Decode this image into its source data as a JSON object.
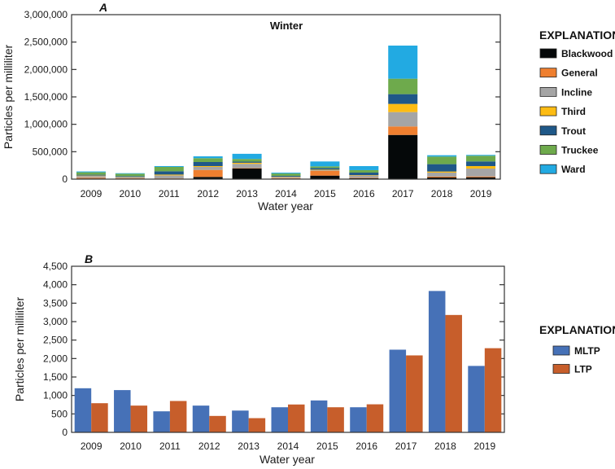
{
  "chart_data": [
    {
      "panel": "A",
      "type": "bar",
      "stacked": true,
      "title": "Winter",
      "xlabel": "Water year",
      "ylabel": "Particles per milliliter",
      "ylim": [
        0,
        3000000
      ],
      "yticks": [
        0,
        500000,
        1000000,
        1500000,
        2000000,
        2500000,
        3000000
      ],
      "ytick_labels": [
        "0",
        "500,000",
        "1,000,000",
        "1,500,000",
        "2,000,000",
        "2,500,000",
        "3,000,000"
      ],
      "categories": [
        "2009",
        "2010",
        "2011",
        "2012",
        "2013",
        "2014",
        "2015",
        "2016",
        "2017",
        "2018",
        "2019"
      ],
      "legend": {
        "title": "EXPLANATION",
        "placement": "right"
      },
      "series": [
        {
          "name": "Blackwood",
          "color": "#050809",
          "values": [
            12000,
            10000,
            8000,
            40000,
            193000,
            10000,
            64000,
            15000,
            806000,
            30000,
            34000
          ]
        },
        {
          "name": "General",
          "color": "#ef7f2f",
          "values": [
            15000,
            10000,
            5000,
            128000,
            7000,
            10000,
            89000,
            7000,
            155000,
            15000,
            15000
          ]
        },
        {
          "name": "Incline",
          "color": "#a5a5a5",
          "values": [
            30000,
            15000,
            55000,
            55000,
            79000,
            20000,
            10000,
            45000,
            262000,
            74000,
            144000
          ]
        },
        {
          "name": "Third",
          "color": "#fdbc13",
          "values": [
            8000,
            5000,
            15000,
            15000,
            20000,
            5000,
            10000,
            7000,
            149000,
            20000,
            45000
          ]
        },
        {
          "name": "Trout",
          "color": "#1f5888",
          "values": [
            15000,
            15000,
            60000,
            74000,
            20000,
            15000,
            30000,
            45000,
            178000,
            134000,
            85000
          ]
        },
        {
          "name": "Truckee",
          "color": "#6eaa4c",
          "values": [
            45000,
            43000,
            80000,
            70000,
            49000,
            43000,
            30000,
            45000,
            282000,
            138000,
            104000
          ]
        },
        {
          "name": "Ward",
          "color": "#22aae2",
          "values": [
            15000,
            10000,
            15000,
            34000,
            94000,
            15000,
            89000,
            74000,
            604000,
            25000,
            15000
          ]
        }
      ]
    },
    {
      "panel": "B",
      "type": "bar",
      "stacked": false,
      "title": "",
      "xlabel": "Water year",
      "ylabel": "Particles per milliliter",
      "ylim": [
        0,
        4500
      ],
      "yticks": [
        0,
        500,
        1000,
        1500,
        2000,
        2500,
        3000,
        3500,
        4000,
        4500
      ],
      "ytick_labels": [
        "0",
        "500",
        "1,000",
        "1,500",
        "2,000",
        "2,500",
        "3,000",
        "3,500",
        "4,000",
        "4,500"
      ],
      "categories": [
        "2009",
        "2010",
        "2011",
        "2012",
        "2013",
        "2014",
        "2015",
        "2016",
        "2017",
        "2018",
        "2019"
      ],
      "legend": {
        "title": "EXPLANATION",
        "placement": "right"
      },
      "series": [
        {
          "name": "MLTP",
          "color": "#4671b7",
          "values": [
            1195,
            1145,
            570,
            725,
            590,
            680,
            865,
            680,
            2240,
            3830,
            1800
          ]
        },
        {
          "name": "LTP",
          "color": "#c75e2b",
          "values": [
            790,
            725,
            850,
            445,
            385,
            755,
            680,
            760,
            2085,
            3180,
            2280
          ]
        }
      ]
    }
  ]
}
